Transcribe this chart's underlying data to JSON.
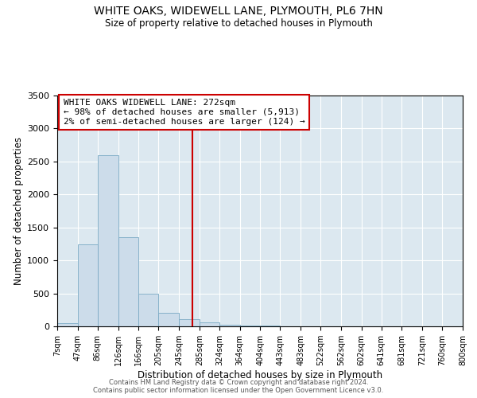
{
  "title": "WHITE OAKS, WIDEWELL LANE, PLYMOUTH, PL6 7HN",
  "subtitle": "Size of property relative to detached houses in Plymouth",
  "xlabel": "Distribution of detached houses by size in Plymouth",
  "ylabel": "Number of detached properties",
  "bar_color": "#ccdcea",
  "bar_edge_color": "#7aaac4",
  "background_color": "#dce8f0",
  "vline_x": 272,
  "vline_color": "#cc0000",
  "annotation_title": "WHITE OAKS WIDEWELL LANE: 272sqm",
  "annotation_line1": "← 98% of detached houses are smaller (5,913)",
  "annotation_line2": "2% of semi-detached houses are larger (124) →",
  "annotation_box_color": "#cc0000",
  "bin_edges": [
    7,
    47,
    86,
    126,
    166,
    205,
    245,
    285,
    324,
    364,
    404,
    443,
    483,
    522,
    562,
    602,
    641,
    681,
    721,
    760,
    800
  ],
  "bin_labels": [
    "7sqm",
    "47sqm",
    "86sqm",
    "126sqm",
    "166sqm",
    "205sqm",
    "245sqm",
    "285sqm",
    "324sqm",
    "364sqm",
    "404sqm",
    "443sqm",
    "483sqm",
    "522sqm",
    "562sqm",
    "602sqm",
    "641sqm",
    "681sqm",
    "721sqm",
    "760sqm",
    "800sqm"
  ],
  "counts": [
    50,
    1240,
    2590,
    1350,
    500,
    200,
    110,
    60,
    30,
    15,
    8,
    5,
    3,
    2,
    1,
    1,
    1,
    1,
    1,
    1
  ],
  "ylim": [
    0,
    3500
  ],
  "yticks": [
    0,
    500,
    1000,
    1500,
    2000,
    2500,
    3000,
    3500
  ],
  "footer1": "Contains HM Land Registry data © Crown copyright and database right 2024.",
  "footer2": "Contains public sector information licensed under the Open Government Licence v3.0."
}
